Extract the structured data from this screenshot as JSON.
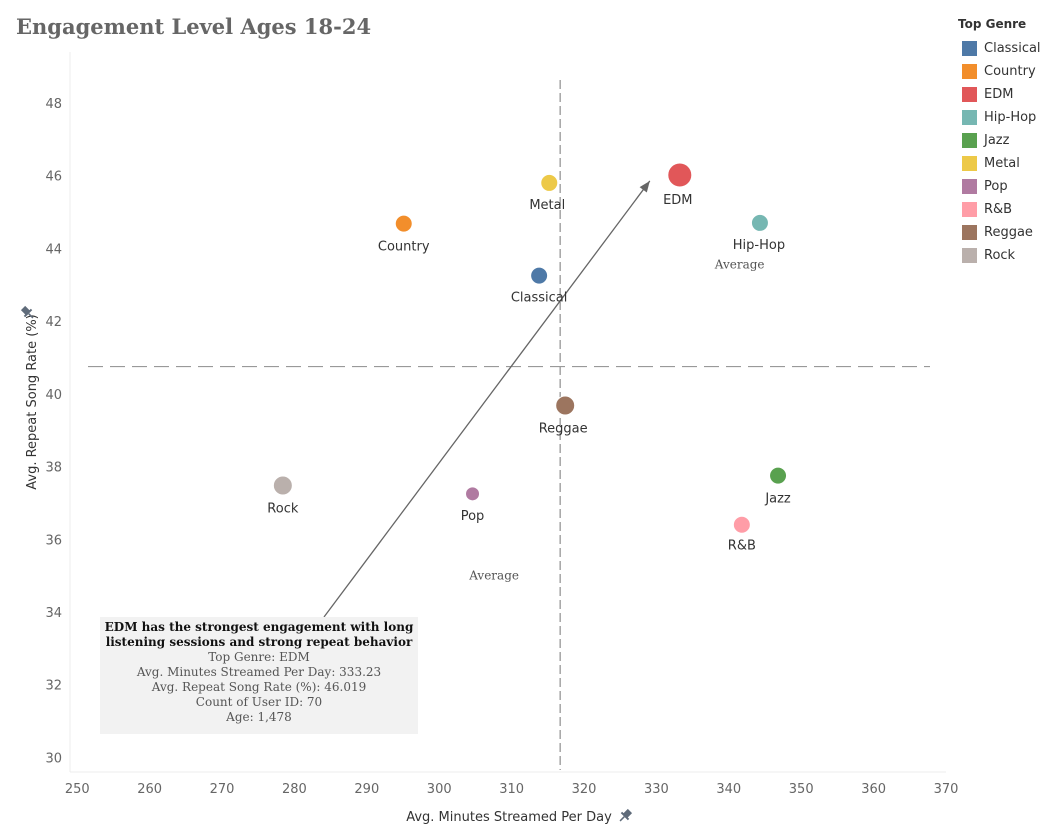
{
  "chart_data": {
    "type": "scatter",
    "title": "Engagement Level Ages 18-24",
    "xlabel": "Avg. Minutes Streamed Per Day",
    "ylabel": "Avg. Repeat Song Rate (%)",
    "xlim": [
      249,
      370
    ],
    "ylim": [
      29.6,
      49.4
    ],
    "xticks": [
      250,
      260,
      270,
      280,
      290,
      300,
      310,
      320,
      330,
      340,
      350,
      360,
      370
    ],
    "yticks": [
      30,
      32,
      34,
      36,
      38,
      40,
      42,
      44,
      46,
      48
    ],
    "grid": false,
    "legend_title": "Top Genre",
    "legend_position": "right",
    "points": [
      {
        "genre": "Classical",
        "x": 313.8,
        "y": 43.25,
        "color": "#4e79a7",
        "size": "small"
      },
      {
        "genre": "Country",
        "x": 295.1,
        "y": 44.68,
        "color": "#f28e2b",
        "size": "small"
      },
      {
        "genre": "EDM",
        "x": 333.23,
        "y": 46.019,
        "color": "#e15759",
        "size": "large"
      },
      {
        "genre": "Hip-Hop",
        "x": 344.3,
        "y": 44.7,
        "color": "#76b7b2",
        "size": "small"
      },
      {
        "genre": "Jazz",
        "x": 346.8,
        "y": 37.75,
        "color": "#59a14f",
        "size": "small"
      },
      {
        "genre": "Metal",
        "x": 315.2,
        "y": 45.8,
        "color": "#edc948",
        "size": "small"
      },
      {
        "genre": "Pop",
        "x": 304.6,
        "y": 37.25,
        "color": "#b07aa1",
        "size": "xsmall"
      },
      {
        "genre": "R&B",
        "x": 341.8,
        "y": 36.4,
        "color": "#ff9da7",
        "size": "small"
      },
      {
        "genre": "Reggae",
        "x": 317.4,
        "y": 39.68,
        "color": "#9c755f",
        "size": "medium"
      },
      {
        "genre": "Rock",
        "x": 278.4,
        "y": 37.48,
        "color": "#bab0ac",
        "size": "medium"
      }
    ],
    "reference_lines": [
      {
        "axis": "x",
        "value": 316.7,
        "label": "Average"
      },
      {
        "axis": "y",
        "value": 40.75,
        "label": "Average"
      }
    ],
    "annotation": {
      "headline_line1": "EDM has the strongest engagement with long",
      "headline_line2": "listening sessions and strong repeat behavior",
      "line1": "Top Genre: EDM",
      "line2": "Avg. Minutes Streamed Per Day: 333.23",
      "line3": "Avg. Repeat Song Rate (%): 46.019",
      "line4": "Count of User ID: 70",
      "line5": "Age: 1,478"
    }
  },
  "legend": {
    "title": "Top Genre",
    "items": [
      {
        "label": "Classical",
        "color": "#4e79a7"
      },
      {
        "label": "Country",
        "color": "#f28e2b"
      },
      {
        "label": "EDM",
        "color": "#e15759"
      },
      {
        "label": "Hip-Hop",
        "color": "#76b7b2"
      },
      {
        "label": "Jazz",
        "color": "#59a14f"
      },
      {
        "label": "Metal",
        "color": "#edc948"
      },
      {
        "label": "Pop",
        "color": "#b07aa1"
      },
      {
        "label": "R&B",
        "color": "#ff9da7"
      },
      {
        "label": "Reggae",
        "color": "#9c755f"
      },
      {
        "label": "Rock",
        "color": "#bab0ac"
      }
    ]
  },
  "icons": {
    "y_axis_pin": "pin-icon",
    "x_axis_pin": "pin-icon"
  }
}
